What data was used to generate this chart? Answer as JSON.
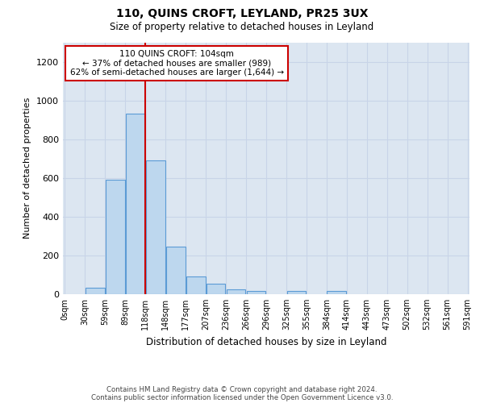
{
  "title": "110, QUINS CROFT, LEYLAND, PR25 3UX",
  "subtitle": "Size of property relative to detached houses in Leyland",
  "xlabel": "Distribution of detached houses by size in Leyland",
  "ylabel": "Number of detached properties",
  "bar_color": "#bdd7ee",
  "bar_edge_color": "#5b9bd5",
  "grid_color": "#c8d4e8",
  "background_color": "#dce6f1",
  "annotation_box_color": "#cc0000",
  "red_line_color": "#cc0000",
  "red_line_x": 3.5,
  "annotation_text": "110 QUINS CROFT: 104sqm\n← 37% of detached houses are smaller (989)\n62% of semi-detached houses are larger (1,644) →",
  "footer_line1": "Contains HM Land Registry data © Crown copyright and database right 2024.",
  "footer_line2": "Contains public sector information licensed under the Open Government Licence v3.0.",
  "bin_labels": [
    "0sqm",
    "30sqm",
    "59sqm",
    "89sqm",
    "118sqm",
    "148sqm",
    "177sqm",
    "207sqm",
    "236sqm",
    "266sqm",
    "296sqm",
    "325sqm",
    "355sqm",
    "384sqm",
    "414sqm",
    "443sqm",
    "473sqm",
    "502sqm",
    "532sqm",
    "561sqm",
    "591sqm"
  ],
  "bar_heights": [
    0,
    35,
    590,
    930,
    690,
    245,
    90,
    55,
    25,
    15,
    0,
    15,
    0,
    15,
    0,
    0,
    0,
    0,
    0,
    0
  ],
  "ylim": [
    0,
    1300
  ],
  "yticks": [
    0,
    200,
    400,
    600,
    800,
    1000,
    1200
  ]
}
